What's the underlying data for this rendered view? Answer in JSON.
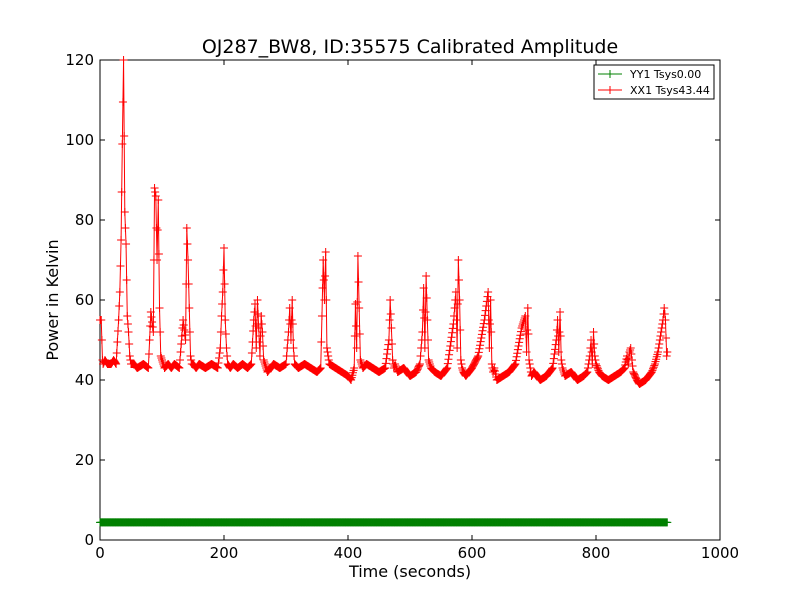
{
  "chart_data": {
    "type": "line",
    "title": "OJ287_BW8, ID:35575 Calibrated Amplitude",
    "xlabel": "Time (seconds)",
    "ylabel": "Power in Kelvin",
    "xlim": [
      0,
      1000
    ],
    "ylim": [
      0,
      120
    ],
    "xticks": [
      0,
      200,
      400,
      600,
      800,
      1000
    ],
    "yticks": [
      0,
      20,
      40,
      60,
      80,
      100,
      120
    ],
    "grid": false,
    "legend_position": "top-right",
    "markers": "plus",
    "series": [
      {
        "name": "YY1 Tsys0.00",
        "color": "#008000",
        "x": [
          0,
          915
        ],
        "y": [
          4.4,
          4.4
        ],
        "step": 1
      },
      {
        "name": "XX1 Tsys43.44",
        "color": "#ff0000",
        "x": [
          0,
          2,
          4,
          5,
          8,
          12,
          18,
          22,
          26,
          30,
          32,
          34,
          36,
          38,
          40,
          42,
          44,
          46,
          48,
          50,
          55,
          60,
          70,
          78,
          82,
          86,
          88,
          90,
          92,
          94,
          96,
          98,
          100,
          104,
          110,
          115,
          120,
          128,
          134,
          138,
          140,
          142,
          144,
          146,
          148,
          150,
          155,
          160,
          170,
          180,
          190,
          194,
          196,
          198,
          200,
          202,
          204,
          206,
          210,
          215,
          222,
          230,
          238,
          244,
          248,
          250,
          252,
          254,
          256,
          258,
          260,
          262,
          264,
          270,
          280,
          290,
          300,
          304,
          306,
          308,
          310,
          312,
          314,
          320,
          330,
          340,
          350,
          356,
          358,
          360,
          362,
          364,
          366,
          370,
          380,
          390,
          400,
          405,
          410,
          412,
          414,
          416,
          418,
          420,
          424,
          430,
          440,
          450,
          460,
          466,
          468,
          470,
          472,
          474,
          476,
          480,
          490,
          500,
          510,
          516,
          520,
          522,
          524,
          526,
          528,
          530,
          534,
          540,
          550,
          560,
          570,
          574,
          576,
          578,
          580,
          582,
          584,
          586,
          590,
          600,
          610,
          620,
          626,
          628,
          630,
          632,
          634,
          636,
          640,
          650,
          660,
          670,
          680,
          686,
          688,
          690,
          692,
          694,
          696,
          700,
          710,
          720,
          730,
          736,
          738,
          740,
          742,
          744,
          746,
          750,
          760,
          770,
          780,
          786,
          790,
          792,
          794,
          796,
          798,
          800,
          805,
          810,
          820,
          830,
          840,
          846,
          850,
          852,
          854,
          856,
          858,
          860,
          866,
          870,
          880,
          890,
          895,
          900,
          905,
          908,
          910,
          912,
          914,
          915
        ],
        "y": [
          55,
          55,
          45,
          44,
          45,
          44,
          44,
          45,
          44,
          55,
          62,
          75,
          99,
          120,
          82,
          74,
          56,
          52,
          46,
          44,
          44,
          43,
          44,
          43,
          57,
          52,
          88,
          86,
          70,
          85,
          58,
          46,
          45,
          43,
          44,
          43,
          44,
          43,
          55,
          50,
          78,
          70,
          58,
          46,
          44,
          44,
          43,
          44,
          43,
          44,
          43,
          48,
          56,
          62,
          73,
          55,
          48,
          44,
          43,
          44,
          43,
          44,
          43,
          44,
          55,
          59,
          48,
          60,
          53,
          46,
          56,
          52,
          45,
          42,
          44,
          43,
          44,
          52,
          58,
          50,
          60,
          48,
          44,
          43,
          44,
          43,
          42,
          43,
          56,
          70,
          60,
          72,
          48,
          44,
          43,
          42,
          41,
          40,
          43,
          59,
          48,
          71,
          58,
          45,
          43,
          44,
          43,
          42,
          43,
          50,
          60,
          53,
          45,
          43,
          44,
          42,
          43,
          41,
          42,
          44,
          52,
          63,
          48,
          66,
          55,
          45,
          43,
          42,
          41,
          43,
          54,
          62,
          48,
          70,
          60,
          45,
          43,
          42,
          41,
          43,
          46,
          55,
          62,
          48,
          60,
          44,
          42,
          43,
          40,
          41,
          42,
          44,
          53,
          56,
          47,
          58,
          45,
          43,
          41,
          42,
          40,
          41,
          43,
          50,
          55,
          47,
          57,
          45,
          43,
          41,
          42,
          40,
          41,
          42,
          46,
          50,
          44,
          52,
          46,
          44,
          42,
          41,
          40,
          41,
          42,
          43,
          46,
          44,
          47,
          48,
          45,
          42,
          40,
          39,
          40,
          42,
          44,
          47,
          52,
          55,
          58,
          55,
          46,
          47
        ],
        "step": 1
      }
    ]
  }
}
